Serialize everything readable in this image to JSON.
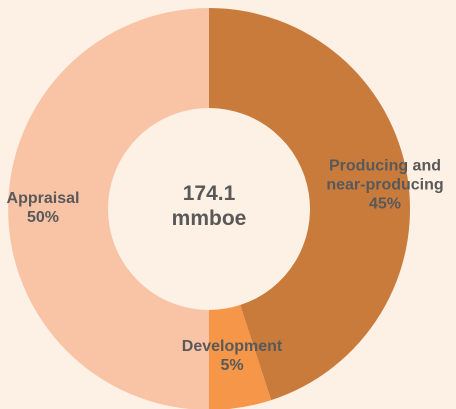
{
  "chart_data": {
    "type": "donut",
    "categories": [
      "Producing and near-producing",
      "Development",
      "Appraisal"
    ],
    "values": [
      45,
      5,
      50
    ],
    "value_labels": [
      "45%",
      "5%",
      "50%"
    ],
    "colors": [
      "#c97b3c",
      "#f59648",
      "#f9c4a6"
    ],
    "center_label": [
      "174.1",
      "mmboe"
    ]
  }
}
